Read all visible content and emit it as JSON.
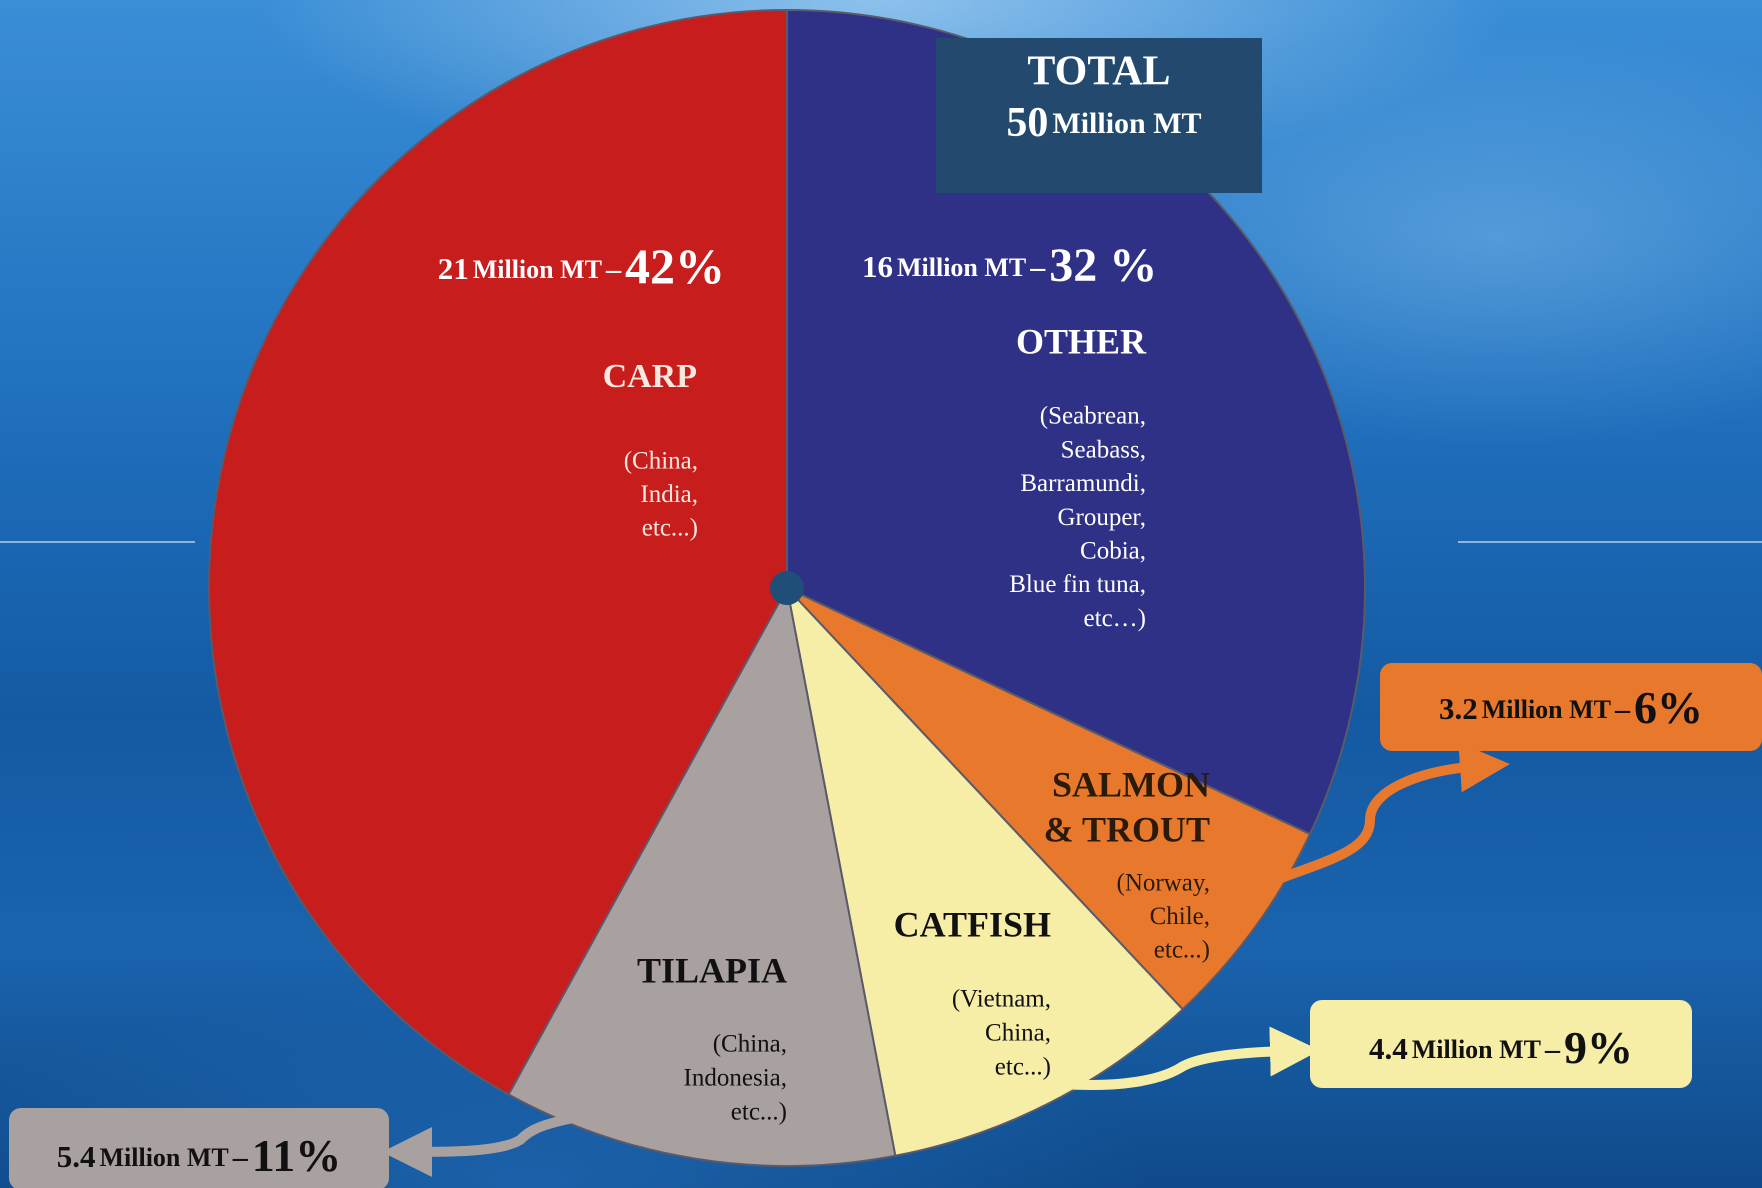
{
  "chart_data": {
    "type": "pie",
    "total_label": "TOTAL",
    "total": 50,
    "unit": "Million MT",
    "separator": "–",
    "categories": [
      [
        "OTHER"
      ],
      [
        "SALMON",
        "& TROUT"
      ],
      [
        "CATFISH"
      ],
      [
        "TILAPIA"
      ],
      [
        "CARP"
      ]
    ],
    "notes": [
      [
        "(Seabrean,",
        "Seabass,",
        "Barramundi,",
        "Grouper,",
        "Cobia,",
        "Blue fin tuna,",
        "etc…)"
      ],
      [
        "(Norway,",
        "Chile,",
        "etc...)"
      ],
      [
        "(Vietnam,",
        "China,",
        "etc...)"
      ],
      [
        "(China,",
        "Indonesia,",
        "etc...)"
      ],
      [
        "(China,",
        "India,",
        "etc...)"
      ]
    ],
    "amounts": [
      16,
      3.2,
      4.4,
      5.4,
      21
    ],
    "values": [
      32,
      6,
      9,
      11,
      42
    ],
    "value_labels": [
      "32 %",
      "6%",
      "9%",
      "11%",
      "42%"
    ],
    "colors": [
      "#2e3185",
      "#e8792c",
      "#f6eda7",
      "#a9a19f",
      "#c81d1d"
    ]
  }
}
